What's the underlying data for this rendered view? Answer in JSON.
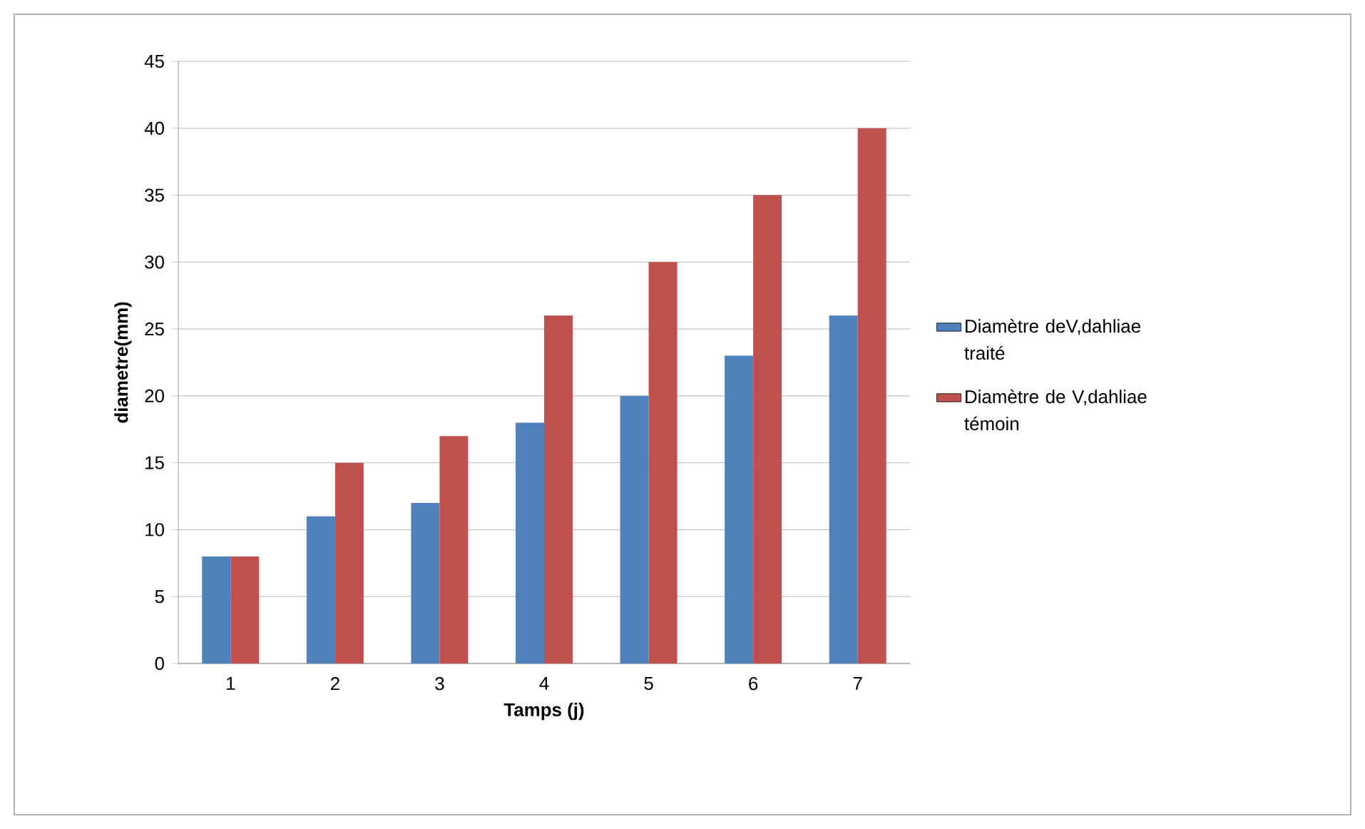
{
  "chart_data": {
    "type": "bar",
    "xlabel": "Tamps (j)",
    "ylabel": "diametre(mm)",
    "categories": [
      "1",
      "2",
      "3",
      "4",
      "5",
      "6",
      "7"
    ],
    "series": [
      {
        "name": "Diamètre deV,dahliae traité",
        "color": "#4f81bd",
        "values": [
          8,
          11,
          12,
          18,
          20,
          23,
          26
        ]
      },
      {
        "name": "Diamètre de V,dahliae témoin",
        "color": "#c0504d",
        "values": [
          8,
          15,
          17,
          26,
          30,
          35,
          40
        ]
      }
    ],
    "ylim": [
      0,
      45
    ],
    "yticks": [
      0,
      5,
      10,
      15,
      20,
      25,
      30,
      35,
      40,
      45
    ],
    "grid": "y",
    "legend": "right"
  }
}
